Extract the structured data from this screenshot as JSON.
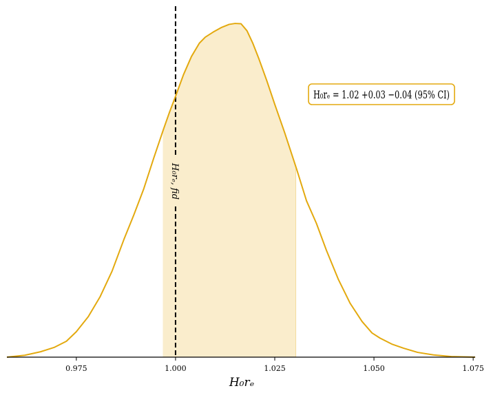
{
  "chart_data": {
    "type": "area",
    "title": "",
    "xlabel": "H₀rₑ",
    "ylabel": "",
    "xlim": [
      0.9575,
      1.0755
    ],
    "ylim": [
      0,
      1.1
    ],
    "grid": false,
    "x_ticks": [
      0.975,
      1.0,
      1.025,
      1.05,
      1.075
    ],
    "x_tick_labels": [
      "0.975",
      "1.000",
      "1.025",
      "1.050",
      "1.075"
    ],
    "color": "#E3A90E",
    "fill_color": "#FAEDCC",
    "series": [
      {
        "x": [
          0.9575,
          0.962,
          0.966,
          0.9695,
          0.9725,
          0.975,
          0.978,
          0.981,
          0.984,
          0.987,
          0.9895,
          0.992,
          0.9945,
          0.997,
          0.9985,
          1.0,
          1.002,
          1.004,
          1.006,
          1.0075,
          1.0095,
          1.0115,
          1.0135,
          1.015,
          1.0165,
          1.018,
          1.0195,
          1.021,
          1.023,
          1.025,
          1.0275,
          1.0305,
          1.033,
          1.0355,
          1.038,
          1.041,
          1.044,
          1.047,
          1.0495,
          1.0515,
          1.0545,
          1.0575,
          1.061,
          1.065,
          1.0695,
          1.0755
        ],
        "y": [
          0.0,
          0.006,
          0.017,
          0.031,
          0.05,
          0.08,
          0.127,
          0.19,
          0.27,
          0.37,
          0.447,
          0.529,
          0.625,
          0.717,
          0.77,
          0.819,
          0.887,
          0.944,
          0.986,
          1.005,
          1.021,
          1.035,
          1.045,
          1.048,
          1.047,
          1.025,
          0.985,
          0.937,
          0.868,
          0.794,
          0.705,
          0.591,
          0.491,
          0.42,
          0.336,
          0.245,
          0.169,
          0.112,
          0.076,
          0.06,
          0.041,
          0.028,
          0.015,
          0.007,
          0.002,
          0.0
        ]
      }
    ],
    "ci_band": {
      "x_low": 0.9968,
      "x_high": 1.0303
    },
    "reference_line": {
      "x": 1.0,
      "label": "H₀rₑ, fid"
    },
    "annotation": "H₀rₑ = 1.02 +0.03 −0.04 (95% CI)"
  }
}
